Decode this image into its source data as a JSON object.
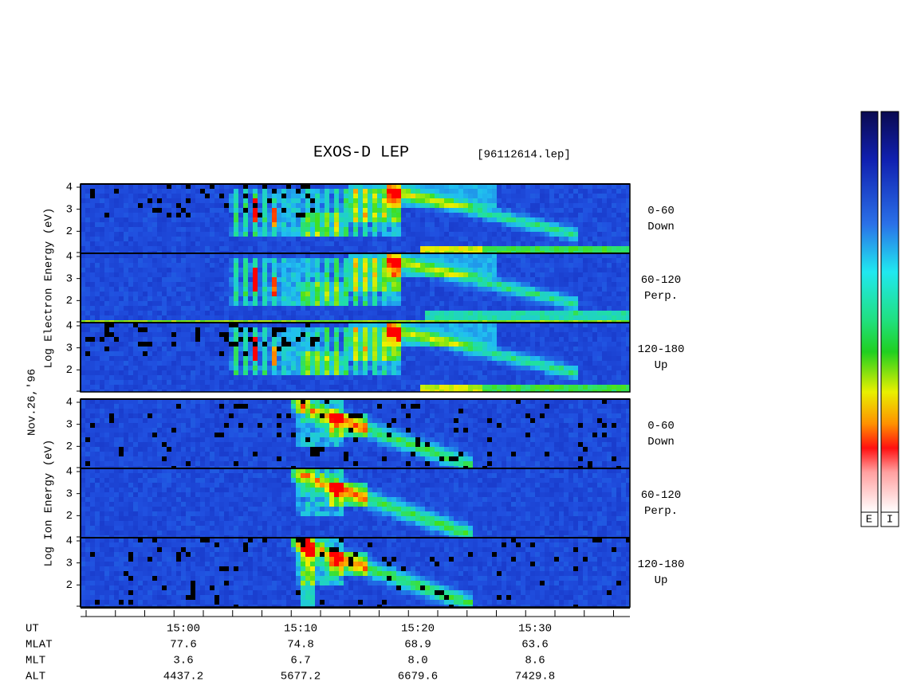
{
  "chart_data": {
    "type": "spectrogram",
    "title": "EXOS-D LEP",
    "file": "[96112614.lep]",
    "date": "Nov.26,'96",
    "ylim": [
      1,
      4
    ],
    "yticks": [
      2,
      3,
      4
    ],
    "groups": [
      {
        "ylabel": "Log Electron Energy (eV)",
        "panels": [
          {
            "angle": "0-60",
            "direction": "Down"
          },
          {
            "angle": "60-120",
            "direction": "Perp."
          },
          {
            "angle": "120-180",
            "direction": "Up"
          }
        ]
      },
      {
        "ylabel": "Log Ion Energy (eV)",
        "panels": [
          {
            "angle": "0-60",
            "direction": "Down"
          },
          {
            "angle": "60-120",
            "direction": "Perp."
          },
          {
            "angle": "120-180",
            "direction": "Up"
          }
        ]
      }
    ],
    "ephemeris": [
      {
        "name": "UT",
        "values": [
          "15:00",
          "15:10",
          "15:20",
          "15:30"
        ]
      },
      {
        "name": "MLAT",
        "values": [
          "77.6",
          "74.8",
          "68.9",
          "63.6"
        ]
      },
      {
        "name": "MLT",
        "values": [
          "3.6",
          "6.7",
          "8.0",
          "8.6"
        ]
      },
      {
        "name": "ALT",
        "values": [
          "4437.2",
          "5677.2",
          "6679.6",
          "7429.8"
        ]
      }
    ],
    "colorbar_labels": [
      "E",
      "I"
    ]
  }
}
